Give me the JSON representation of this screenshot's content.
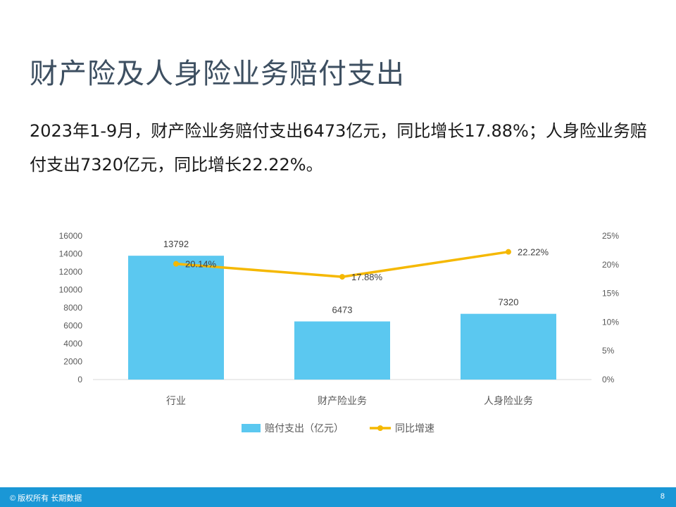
{
  "slide": {
    "title": "财产险及人身险业务赔付支出",
    "summary": "2023年1-9月，财产险业务赔付支出6473亿元，同比增长17.88%；人身险业务赔付支出7320亿元，同比增长22.22%。"
  },
  "footer": {
    "copyright": "© 版权所有 长期数据",
    "page_number": "8"
  },
  "chart_data": {
    "type": "bar",
    "categories": [
      "行业",
      "财产险业务",
      "人身险业务"
    ],
    "series": [
      {
        "name": "赔付支出（亿元）",
        "type": "bar",
        "axis": "left",
        "values": [
          13792,
          6473,
          7320
        ],
        "color": "#5bc8f0"
      },
      {
        "name": "同比增速",
        "type": "line",
        "axis": "right",
        "values": [
          20.14,
          17.88,
          22.22
        ],
        "color": "#f5b800"
      }
    ],
    "data_labels": {
      "bar": [
        "13792",
        "6473",
        "7320"
      ],
      "line": [
        "20.14%",
        "17.88%",
        "22.22%"
      ]
    },
    "y_left": {
      "min": 0,
      "max": 16000,
      "step": 2000,
      "ticks": [
        "0",
        "2000",
        "4000",
        "6000",
        "8000",
        "10000",
        "12000",
        "14000",
        "16000"
      ]
    },
    "y_right": {
      "min": 0,
      "max": 25,
      "step": 5,
      "ticks": [
        "0%",
        "5%",
        "10%",
        "15%",
        "20%",
        "25%"
      ]
    },
    "grid": false,
    "legend_position": "bottom"
  }
}
